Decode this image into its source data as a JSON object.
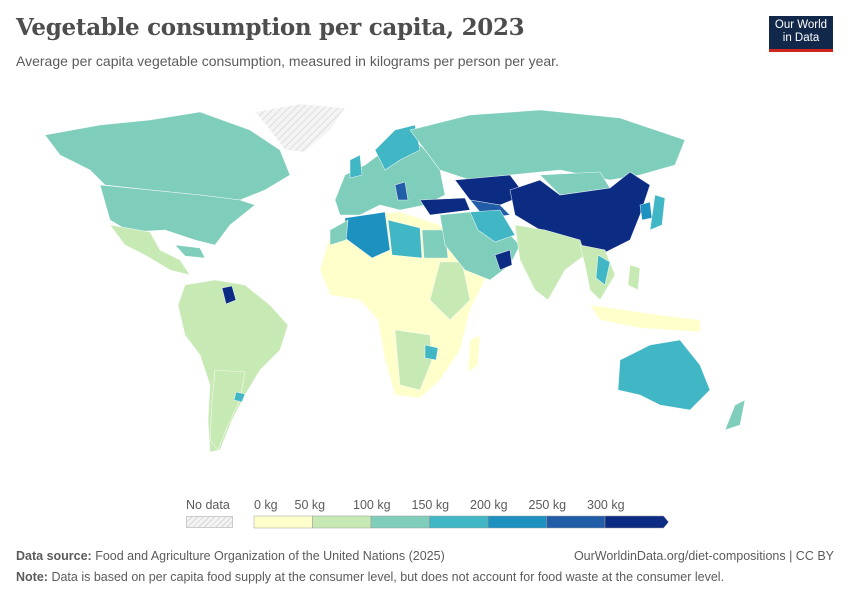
{
  "title": "Vegetable consumption per capita, 2023",
  "subtitle": "Average per capita vegetable consumption, measured in kilograms per person per year.",
  "logo": {
    "line1": "Our World",
    "line2": "in Data"
  },
  "legend": {
    "no_data_label": "No data",
    "ticks": [
      "0 kg",
      "50 kg",
      "100 kg",
      "150 kg",
      "200 kg",
      "250 kg",
      "300 kg"
    ],
    "colors": [
      "#ffffcc",
      "#c7e9b4",
      "#7fcdbb",
      "#41b6c4",
      "#1d91c0",
      "#225ea8",
      "#0c2c84"
    ],
    "no_data_color": "#e9e9e9"
  },
  "footer": {
    "source_label": "Data source:",
    "source": "Food and Agriculture Organization of the United Nations (2025)",
    "link": "OurWorldinData.org/diet-compositions | CC BY",
    "note_label": "Note:",
    "note": "Data is based on per capita food supply at the consumer level, but does not account for food waste at the consumer level."
  }
}
